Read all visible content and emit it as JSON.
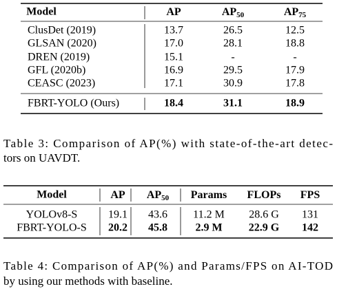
{
  "table3": {
    "header": [
      "Model",
      {
        "main": "AP"
      },
      {
        "main": "AP",
        "sub": "50"
      },
      {
        "main": "AP",
        "sub": "75"
      }
    ],
    "rows": [
      [
        "ClusDet  (2019)",
        "13.7",
        "26.5",
        "12.5"
      ],
      [
        "GLSAN  (2020)",
        "17.0",
        "28.1",
        "18.8"
      ],
      [
        "DREN  (2019)",
        "15.1",
        "-",
        "-"
      ],
      [
        "GFL  (2020b)",
        "16.9",
        "29.5",
        "17.9"
      ],
      [
        "CEASC  (2023)",
        "17.1",
        "30.9",
        "17.8"
      ],
      [
        "FBRT-YOLO (Ours)",
        "18.4",
        "31.1",
        "18.9"
      ]
    ],
    "caption": [
      "Table 3: Comparison of AP(%) with state-of-the-art detec-",
      "tors on UAVDT."
    ]
  },
  "table4": {
    "header": [
      "Model",
      {
        "main": "AP"
      },
      {
        "main": "AP",
        "sub": "50"
      },
      {
        "main": "Params"
      },
      {
        "main": "FLOPs"
      },
      {
        "main": "FPS"
      }
    ],
    "rows": [
      [
        "YOLOv8-S",
        "19.1",
        "43.6",
        "11.2 M",
        "28.6 G",
        "131"
      ],
      [
        "FBRT-YOLO-S",
        "20.2",
        "45.8",
        "2.9 M",
        "22.9 G",
        "142"
      ]
    ],
    "caption": [
      "Table 4: Comparison of AP(%) and Params/FPS on AI-TOD",
      "by using our methods with baseline."
    ]
  }
}
